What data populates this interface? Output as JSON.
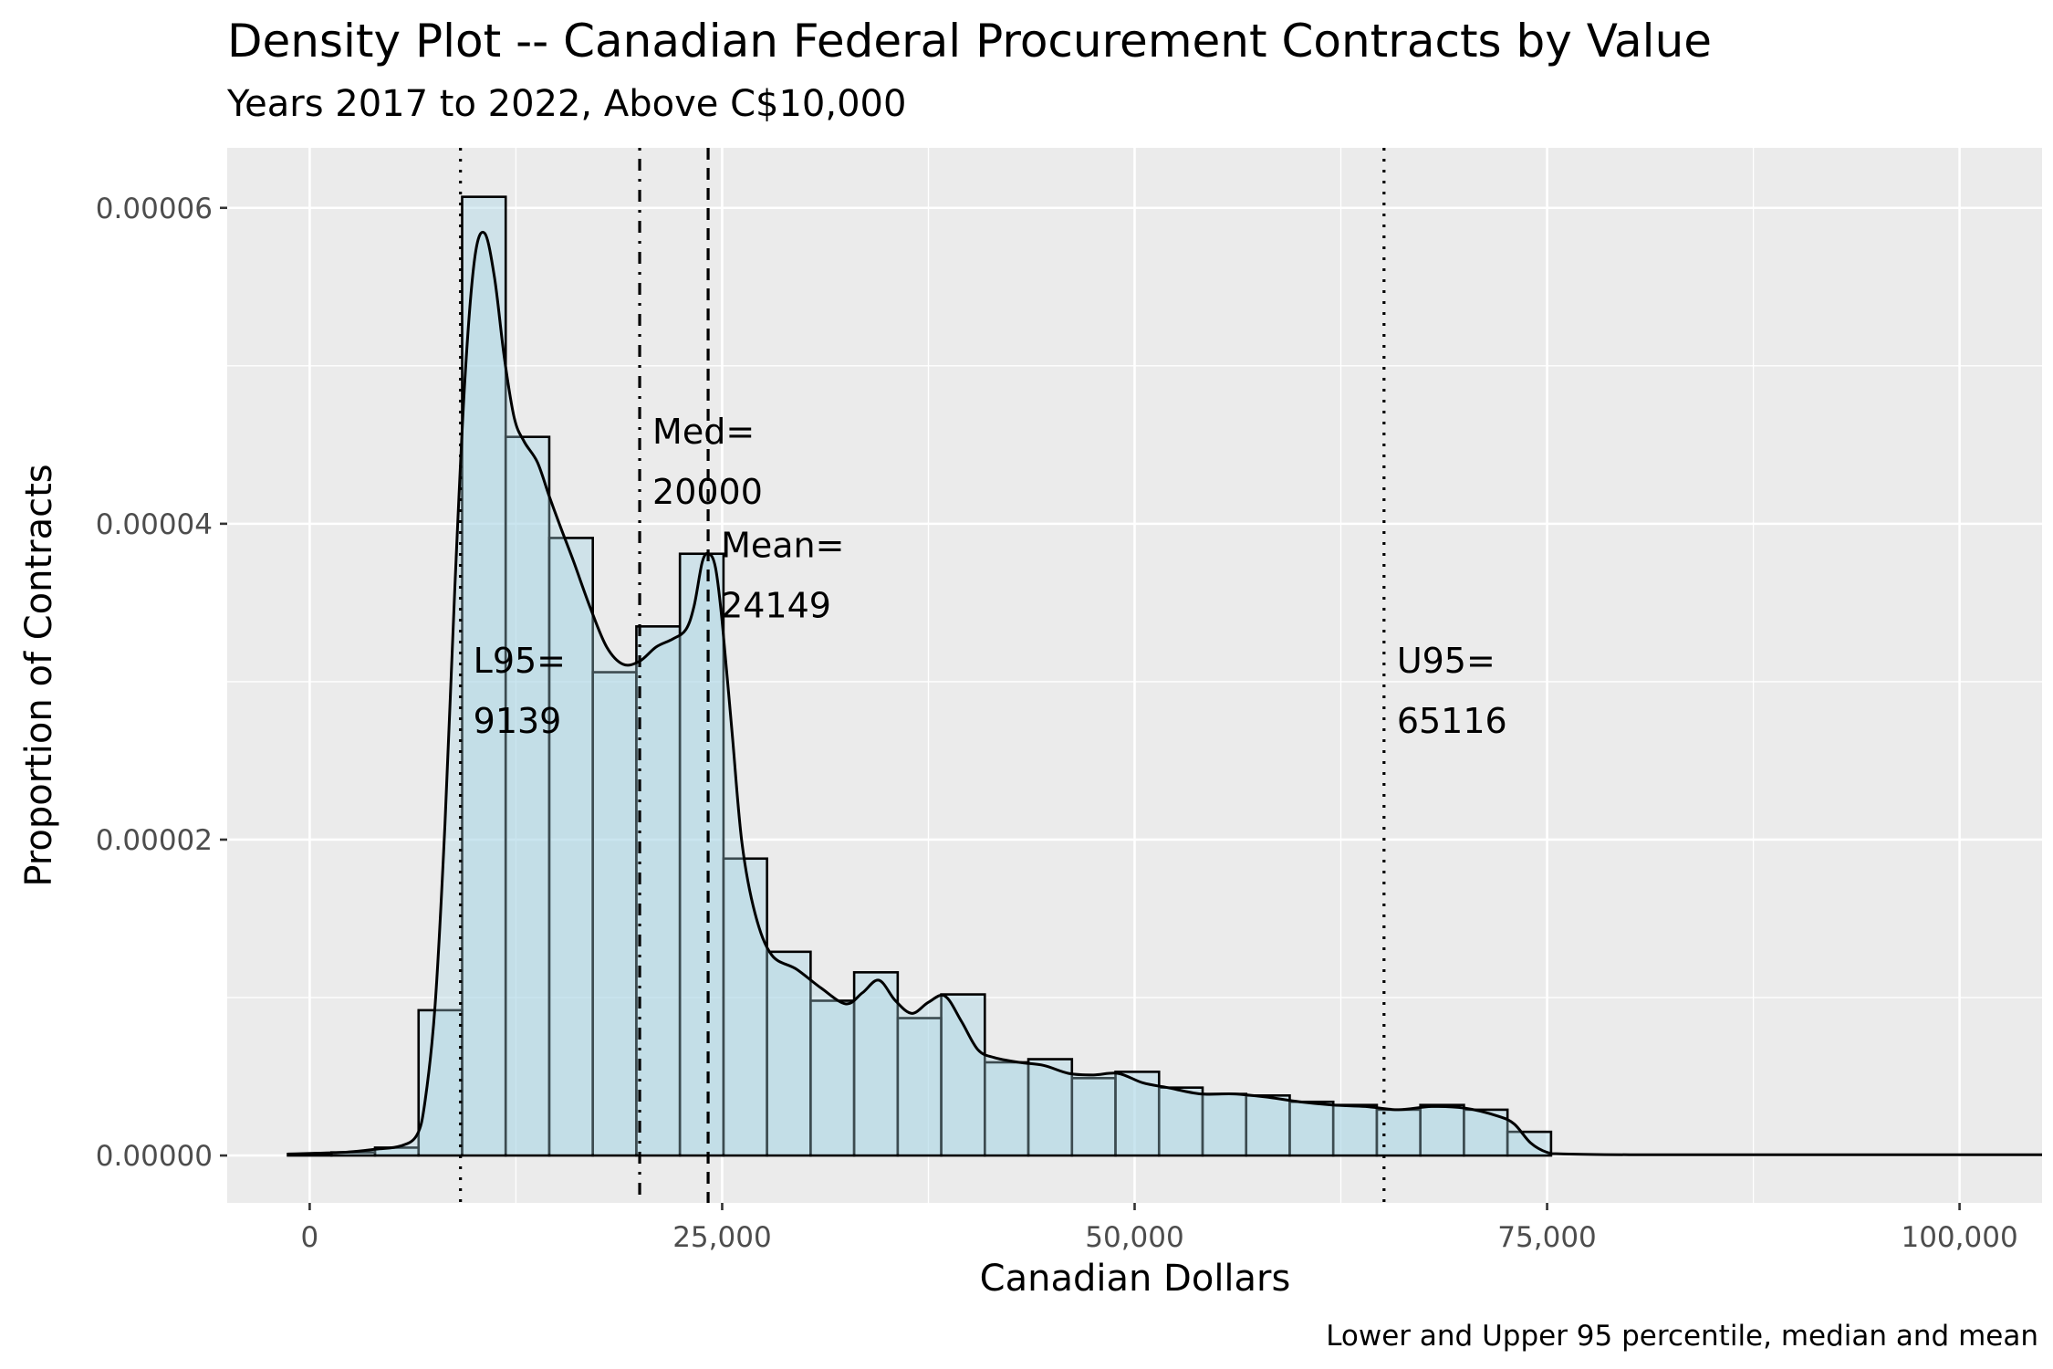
{
  "chart_data": {
    "type": "histogram",
    "title": "Density Plot -- Canadian Federal Procurement Contracts by Value",
    "subtitle": "Years 2017 to 2022, Above C$10,000",
    "xlabel": "Canadian Dollars",
    "ylabel": "Proportion of Contracts",
    "caption": "Lower and Upper 95 percentile, median and mean",
    "xlim": [
      -5000,
      105000
    ],
    "ylim": [
      -3e-06,
      6.38e-05
    ],
    "x_ticks": [
      0,
      25000,
      50000,
      75000,
      100000
    ],
    "x_tick_labels": [
      "0",
      "25,000",
      "50,000",
      "75,000",
      "100,000"
    ],
    "y_ticks": [
      0,
      2e-05,
      4e-05,
      6e-05
    ],
    "y_tick_labels": [
      "0.00000",
      "0.00002",
      "0.00004",
      "0.00006"
    ],
    "bin_width": 2640,
    "histogram": {
      "bin_starts": [
        -1320,
        1320,
        3960,
        6600,
        9240,
        11880,
        14520,
        17160,
        19800,
        22440,
        25080,
        27720,
        30360,
        33000,
        35640,
        38280,
        40920,
        43560,
        46200,
        48840,
        51480,
        54120,
        56760,
        59400,
        62040,
        64680,
        67320,
        69960,
        72600
      ],
      "values": [
        1e-07,
        2e-07,
        5e-07,
        9.2e-06,
        6.07e-05,
        4.55e-05,
        3.91e-05,
        3.06e-05,
        3.35e-05,
        3.81e-05,
        1.88e-05,
        1.29e-05,
        9.8e-06,
        1.16e-05,
        8.7e-06,
        1.02e-05,
        5.9e-06,
        6.1e-06,
        4.9e-06,
        5.3e-06,
        4.3e-06,
        3.9e-06,
        3.8e-06,
        3.4e-06,
        3.2e-06,
        2.9e-06,
        3.2e-06,
        2.9e-06,
        1.5e-06
      ]
    },
    "density_curve": {
      "x": [
        -1300,
        2000,
        4000,
        5500,
        6500,
        7000,
        7600,
        8200,
        8800,
        9400,
        10000,
        10600,
        11200,
        11800,
        12400,
        13000,
        13800,
        14500,
        15200,
        16000,
        17000,
        18000,
        19000,
        20000,
        21000,
        22000,
        22800,
        23300,
        23800,
        24200,
        24600,
        25000,
        25600,
        26200,
        27000,
        28000,
        29500,
        31000,
        32500,
        33500,
        34500,
        35500,
        36500,
        37500,
        38500,
        39500,
        40500,
        41500,
        43000,
        44500,
        46000,
        47500,
        49000,
        50500,
        52000,
        54000,
        56000,
        58000,
        60000,
        62000,
        64000,
        66000,
        68000,
        70000,
        72000,
        73000,
        74000,
        75000,
        76000,
        80000,
        90000,
        105000
      ],
      "y": [
        1e-07,
        2e-07,
        4e-07,
        6e-07,
        1.3e-06,
        3.5e-06,
        9.5e-06,
        2.1e-05,
        3.6e-05,
        4.9e-05,
        5.68e-05,
        5.84e-05,
        5.56e-05,
        5.05e-05,
        4.67e-05,
        4.52e-05,
        4.39e-05,
        4.18e-05,
        3.98e-05,
        3.76e-05,
        3.47e-05,
        3.22e-05,
        3.11e-05,
        3.13e-05,
        3.22e-05,
        3.27e-05,
        3.33e-05,
        3.48e-05,
        3.76e-05,
        3.81e-05,
        3.72e-05,
        3.38e-05,
        2.68e-05,
        1.98e-05,
        1.53e-05,
        1.27e-05,
        1.18e-05,
        1.06e-05,
        9.6e-06,
        1.03e-05,
        1.11e-05,
        9.8e-06,
        9e-06,
        9.7e-06,
        1.01e-05,
        8.5e-06,
        6.7e-06,
        6.2e-06,
        5.9e-06,
        5.7e-06,
        5.2e-06,
        5.1e-06,
        5.2e-06,
        4.6e-06,
        4.3e-06,
        3.9e-06,
        3.9e-06,
        3.7e-06,
        3.4e-06,
        3.2e-06,
        3.1e-06,
        2.9e-06,
        3.1e-06,
        3e-06,
        2.5e-06,
        2e-06,
        8e-07,
        2e-07,
        1e-07,
        5e-08,
        5e-08,
        5e-08
      ]
    },
    "vlines": [
      {
        "name": "L95",
        "x": 9139,
        "linetype": "dotted",
        "label_line1": "L95=",
        "label_line2": "9139",
        "label_y": 3e-05
      },
      {
        "name": "Med",
        "x": 20000,
        "linetype": "dotdash",
        "label_line1": "Med=",
        "label_line2": "20000",
        "label_y": 4.45e-05
      },
      {
        "name": "Mean",
        "x": 24149,
        "linetype": "dashed",
        "label_line1": "Mean=",
        "label_line2": "24149",
        "label_y": 3.73e-05
      },
      {
        "name": "U95",
        "x": 65116,
        "linetype": "dotted",
        "label_line1": "U95=",
        "label_line2": "65116",
        "label_y": 3e-05
      }
    ],
    "grid": true,
    "colors": {
      "panel_background": "#ebebeb",
      "grid": "#ffffff",
      "bar_fill": "#add8e6",
      "bar_fill_alpha": 0.45,
      "bar_outline": "#000000",
      "line": "#000000"
    }
  }
}
